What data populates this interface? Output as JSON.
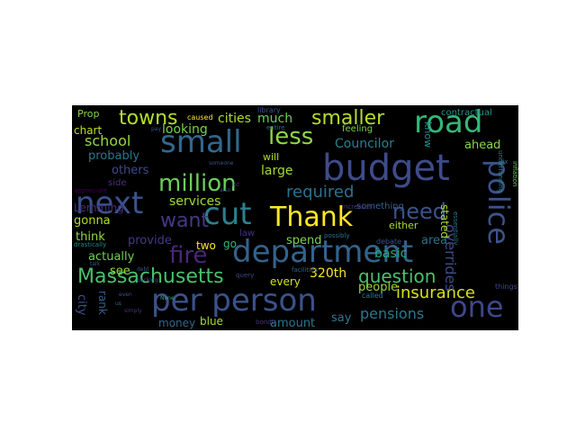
{
  "wordcloud": {
    "background": "#000000",
    "words": [
      {
        "text": "budget",
        "color": "#3e4b8a"
      },
      {
        "text": "department",
        "color": "#33638d"
      },
      {
        "text": "per person",
        "color": "#3b528b"
      },
      {
        "text": "cut",
        "color": "#2d7f8e"
      },
      {
        "text": "road",
        "color": "#35b779"
      },
      {
        "text": "one",
        "color": "#3f4788"
      },
      {
        "text": "next",
        "color": "#3b528b"
      },
      {
        "text": "small",
        "color": "#31688e"
      },
      {
        "text": "police",
        "color": "#3b528b"
      },
      {
        "text": "Thank",
        "color": "#fde725"
      },
      {
        "text": "million",
        "color": "#6ccd5a"
      },
      {
        "text": "less",
        "color": "#8fd744"
      },
      {
        "text": "Massachusetts",
        "color": "#4ac16d"
      },
      {
        "text": "fire",
        "color": "#482878"
      },
      {
        "text": "need",
        "color": "#3b528b"
      },
      {
        "text": "smaller",
        "color": "#b5de2b"
      },
      {
        "text": "towns",
        "color": "#b5de2b"
      },
      {
        "text": "question",
        "color": "#4ac16d"
      },
      {
        "text": "want",
        "color": "#443983"
      },
      {
        "text": "insurance",
        "color": "#d8e219"
      },
      {
        "text": "required",
        "color": "#2c728e"
      },
      {
        "text": "school",
        "color": "#95d840"
      },
      {
        "text": "pensions",
        "color": "#2a788e"
      },
      {
        "text": "overrides",
        "color": "#3e4a89"
      },
      {
        "text": "320th",
        "color": "#fde725"
      },
      {
        "text": "Councilor",
        "color": "#26828e"
      },
      {
        "text": "services",
        "color": "#a0da39"
      },
      {
        "text": "looking",
        "color": "#7ad151"
      },
      {
        "text": "cities",
        "color": "#addc30"
      },
      {
        "text": "much",
        "color": "#6ece58"
      },
      {
        "text": "probably",
        "color": "#2a768e"
      },
      {
        "text": "large",
        "color": "#a2da37"
      },
      {
        "text": "Lemming",
        "color": "#472c7a"
      },
      {
        "text": "others",
        "color": "#3e4989"
      },
      {
        "text": "think",
        "color": "#95d840"
      },
      {
        "text": "actually",
        "color": "#6ece58"
      },
      {
        "text": "provide",
        "color": "#443a83"
      },
      {
        "text": "gonna",
        "color": "#b2dd2d"
      },
      {
        "text": "basic",
        "color": "#25ab82"
      },
      {
        "text": "stated",
        "color": "#addc30"
      },
      {
        "text": "area",
        "color": "#2c728e"
      },
      {
        "text": "spend",
        "color": "#7fd34e"
      },
      {
        "text": "people",
        "color": "#9bd93c"
      },
      {
        "text": "every",
        "color": "#d0e11c"
      },
      {
        "text": "amount",
        "color": "#2a788e"
      },
      {
        "text": "say",
        "color": "#2a788e"
      },
      {
        "text": "blue",
        "color": "#a8db34"
      },
      {
        "text": "money",
        "color": "#31688e"
      },
      {
        "text": "see",
        "color": "#95d840"
      },
      {
        "text": "rank",
        "color": "#34618d"
      },
      {
        "text": "city",
        "color": "#3b528b"
      },
      {
        "text": "chart",
        "color": "#bddf26"
      },
      {
        "text": "Prop",
        "color": "#86d549"
      },
      {
        "text": "ahead",
        "color": "#8bd646"
      },
      {
        "text": "know",
        "color": "#20928c"
      },
      {
        "text": "feeling",
        "color": "#7ad151"
      },
      {
        "text": "something",
        "color": "#355f8d"
      },
      {
        "text": "either",
        "color": "#a8db34"
      },
      {
        "text": "will",
        "color": "#addc30"
      },
      {
        "text": "two",
        "color": "#fde725"
      },
      {
        "text": "go",
        "color": "#37b878"
      },
      {
        "text": "law",
        "color": "#46327e"
      },
      {
        "text": "contractual",
        "color": "#20928c"
      },
      {
        "text": "side",
        "color": "#46307e"
      },
      {
        "text": "caused",
        "color": "#fde725"
      },
      {
        "text": "library",
        "color": "#3a548c"
      },
      {
        "text": "entire",
        "color": "#31688e"
      },
      {
        "text": "debate",
        "color": "#3b528b"
      },
      {
        "text": "possibly",
        "color": "#2c728e"
      },
      {
        "text": "increases",
        "color": "#443983"
      },
      {
        "text": "essentially",
        "color": "#2a788e"
      },
      {
        "text": "inflation",
        "color": "#6ece58"
      },
      {
        "text": "underfunding",
        "color": "#26828e"
      },
      {
        "text": "fix",
        "color": "#31688e"
      },
      {
        "text": "called",
        "color": "#2a788e"
      },
      {
        "text": "things",
        "color": "#3e4989"
      },
      {
        "text": "facilities",
        "color": "#31688e"
      },
      {
        "text": "bonds",
        "color": "#46327e"
      },
      {
        "text": "query",
        "color": "#3e4989"
      },
      {
        "text": "appreciate",
        "color": "#440154"
      },
      {
        "text": "drastically",
        "color": "#25848e"
      },
      {
        "text": "talk",
        "color": "#3b528b"
      },
      {
        "text": "backlog",
        "color": "#3b528b"
      },
      {
        "text": "debt",
        "color": "#3b528b"
      },
      {
        "text": "None",
        "color": "#25ab82"
      },
      {
        "text": "even",
        "color": "#3b528b"
      },
      {
        "text": "us",
        "color": "#31688e"
      },
      {
        "text": "simply",
        "color": "#46327e"
      },
      {
        "text": "someone",
        "color": "#3b528b"
      },
      {
        "text": "pay",
        "color": "#3b528b"
      },
      {
        "text": "let",
        "color": "#46327e"
      },
      {
        "text": "also",
        "color": "#3b528b"
      }
    ]
  }
}
